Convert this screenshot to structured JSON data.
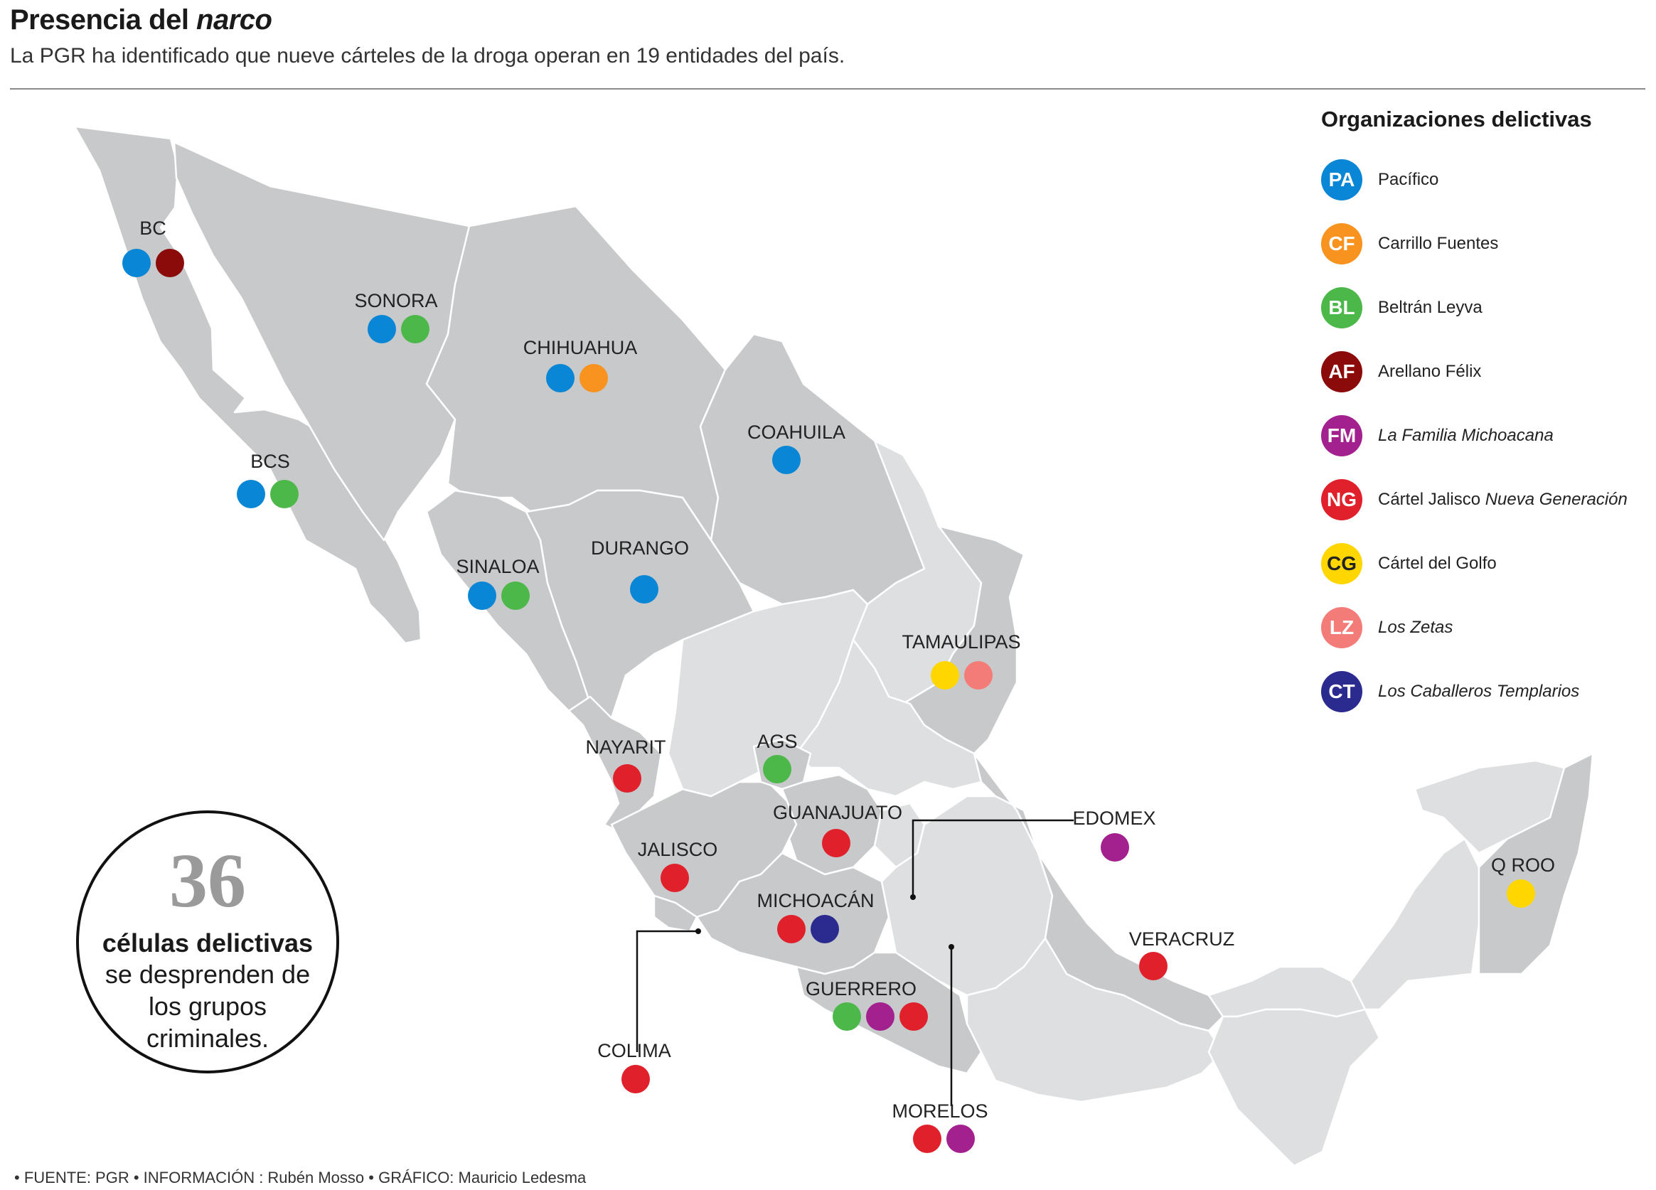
{
  "header": {
    "title_main": "Presencia del ",
    "title_em": "narco",
    "subtitle": "La PGR ha identificado que nueve cárteles de la droga operan en 19 entidades del país."
  },
  "legend": {
    "title": "Organizaciones delictivas",
    "items": [
      {
        "code": "PA",
        "label": "Pacífico",
        "label_em": "",
        "italic": false,
        "color": "#0a86d6"
      },
      {
        "code": "CF",
        "label": "Carrillo Fuentes",
        "label_em": "",
        "italic": false,
        "color": "#f7931e"
      },
      {
        "code": "BL",
        "label": "Beltrán Leyva",
        "label_em": "",
        "italic": false,
        "color": "#4db84a"
      },
      {
        "code": "AF",
        "label": "Arellano Félix",
        "label_em": "",
        "italic": false,
        "color": "#8b0a0a"
      },
      {
        "code": "FM",
        "label": "La Familia Michoacana",
        "label_em": "",
        "italic": true,
        "color": "#a3208f"
      },
      {
        "code": "NG",
        "label": "Cártel Jalisco ",
        "label_em": "Nueva Generación",
        "italic": false,
        "color": "#e0202a"
      },
      {
        "code": "CG",
        "label": "Cártel del Golfo",
        "label_em": "",
        "italic": false,
        "color": "#ffd600"
      },
      {
        "code": "LZ",
        "label": "Los Zetas",
        "label_em": "",
        "italic": true,
        "color": "#f47c78"
      },
      {
        "code": "CT",
        "label": "Los Caballeros Templarios",
        "label_em": "",
        "italic": true,
        "color": "#2b2b8f"
      }
    ]
  },
  "states": [
    {
      "name": "BC",
      "cartels": [
        "PA",
        "AF"
      ]
    },
    {
      "name": "SONORA",
      "cartels": [
        "PA",
        "BL"
      ]
    },
    {
      "name": "CHIHUAHUA",
      "cartels": [
        "PA",
        "CF"
      ]
    },
    {
      "name": "COAHUILA",
      "cartels": [
        "PA"
      ]
    },
    {
      "name": "BCS",
      "cartels": [
        "PA",
        "BL"
      ]
    },
    {
      "name": "SINALOA",
      "cartels": [
        "PA",
        "BL"
      ]
    },
    {
      "name": "DURANGO",
      "cartels": [
        "PA"
      ]
    },
    {
      "name": "TAMAULIPAS",
      "cartels": [
        "CG",
        "LZ"
      ]
    },
    {
      "name": "NAYARIT",
      "cartels": [
        "NG"
      ]
    },
    {
      "name": "AGS",
      "cartels": [
        "BL"
      ]
    },
    {
      "name": "GUANAJUATO",
      "cartels": [
        "NG"
      ]
    },
    {
      "name": "EDOMEX",
      "cartels": [
        "FM"
      ]
    },
    {
      "name": "JALISCO",
      "cartels": [
        "NG"
      ]
    },
    {
      "name": "MICHOACÁN",
      "cartels": [
        "NG",
        "CT"
      ]
    },
    {
      "name": "Q ROO",
      "cartels": [
        "CG"
      ]
    },
    {
      "name": "VERACRUZ",
      "cartels": [
        "NG"
      ]
    },
    {
      "name": "GUERRERO",
      "cartels": [
        "BL",
        "FM",
        "NG"
      ]
    },
    {
      "name": "COLIMA",
      "cartels": [
        "NG"
      ]
    },
    {
      "name": "MORELOS",
      "cartels": [
        "NG",
        "FM"
      ]
    }
  ],
  "stat": {
    "number": "36",
    "bold": "células delictivas",
    "line1": "se desprenden de",
    "line2": "los grupos",
    "line3": "criminales."
  },
  "footer": "• FUENTE: PGR • INFORMACIÓN : Rubén Mosso • GRÁFICO: Mauricio Ledesma",
  "colors": {
    "map_fill": "#c8c9cb",
    "map_light": "#dedfe0",
    "border": "#ffffff"
  }
}
